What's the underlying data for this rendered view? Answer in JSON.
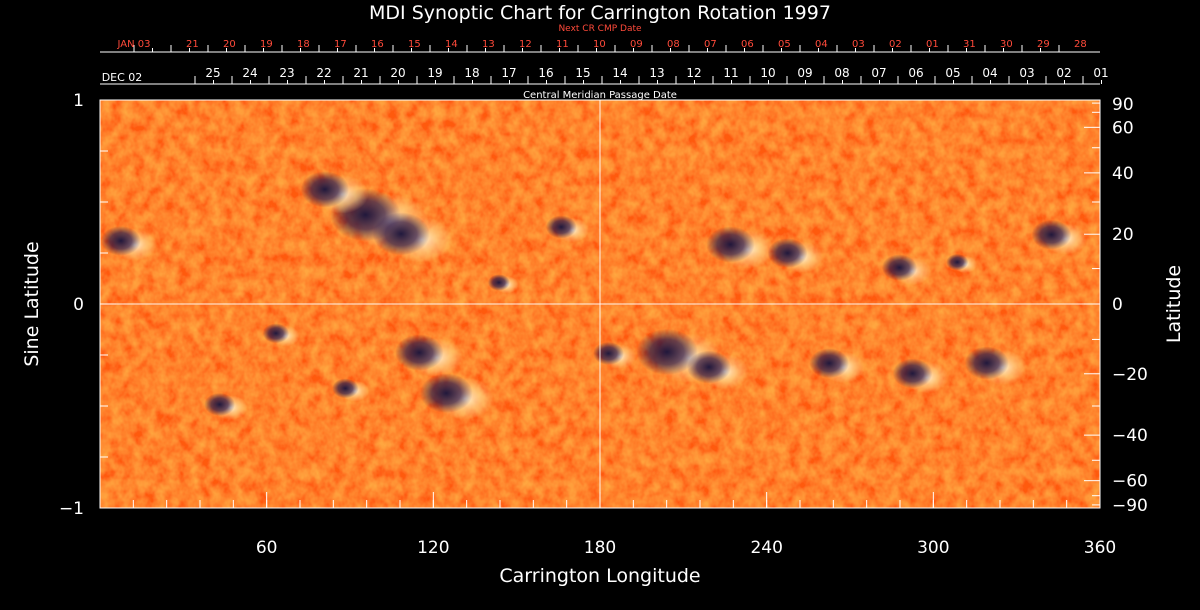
{
  "chart_data": {
    "type": "heatmap",
    "title": "MDI Synoptic Chart for Carrington Rotation 1997",
    "xlabel": "Carrington Longitude",
    "ylabel_left": "Sine Latitude",
    "ylabel_right": "Latitude",
    "xlim": [
      0,
      360
    ],
    "ylim": [
      -1,
      1
    ],
    "x_major_ticks": [
      60,
      120,
      180,
      240,
      300,
      360
    ],
    "x_minor_step": 12,
    "y_left_ticks": [
      {
        "value": 1,
        "label": "1"
      },
      {
        "value": 0,
        "label": "0"
      },
      {
        "value": -1,
        "label": "−1"
      }
    ],
    "y_left_minor_step": 0.25,
    "y_right_ticks": [
      {
        "deg": 90,
        "label": "90"
      },
      {
        "deg": 60,
        "label": "60"
      },
      {
        "deg": 40,
        "label": "40"
      },
      {
        "deg": 20,
        "label": "20"
      },
      {
        "deg": 0,
        "label": "0"
      },
      {
        "deg": -20,
        "label": "−20"
      },
      {
        "deg": -40,
        "label": "−40"
      },
      {
        "deg": -60,
        "label": "−60"
      },
      {
        "deg": -90,
        "label": "−90"
      }
    ],
    "y_right_minor_deg": [
      80,
      70,
      50,
      30,
      10,
      -10,
      -30,
      -50,
      -70,
      -80
    ],
    "center_lines": {
      "longitude": 180,
      "sine_latitude": 0
    },
    "colormap": {
      "background": "#ff5a10",
      "negative_polarity": "#1a1040",
      "positive_polarity": "#fff8e0"
    },
    "next_cr_axis_label": "Next CR CMP Date",
    "next_cr_dates": [
      "JAN 03",
      "21",
      "20",
      "19",
      "18",
      "17",
      "16",
      "15",
      "14",
      "13",
      "12",
      "11",
      "10",
      "09",
      "08",
      "07",
      "06",
      "05",
      "04",
      "03",
      "02",
      "01",
      "31",
      "30",
      "29",
      "28"
    ],
    "cmp_axis_label": "Central Meridian Passage Date",
    "cmp_dates": [
      "DEC 02",
      "25",
      "24",
      "23",
      "22",
      "21",
      "20",
      "19",
      "18",
      "17",
      "16",
      "15",
      "14",
      "13",
      "12",
      "11",
      "10",
      "09",
      "08",
      "07",
      "06",
      "05",
      "04",
      "03",
      "02",
      "01"
    ],
    "active_regions": [
      {
        "lon": 100,
        "sinlat": 0.42,
        "size": 1.6
      },
      {
        "lon": 112,
        "sinlat": 0.33,
        "size": 1.3
      },
      {
        "lon": 84,
        "sinlat": 0.55,
        "size": 1.1
      },
      {
        "lon": 168,
        "sinlat": 0.37,
        "size": 0.7
      },
      {
        "lon": 145,
        "sinlat": 0.1,
        "size": 0.5
      },
      {
        "lon": 230,
        "sinlat": 0.28,
        "size": 1.1
      },
      {
        "lon": 250,
        "sinlat": 0.24,
        "size": 0.9
      },
      {
        "lon": 290,
        "sinlat": 0.17,
        "size": 0.8
      },
      {
        "lon": 310,
        "sinlat": 0.2,
        "size": 0.5
      },
      {
        "lon": 345,
        "sinlat": 0.33,
        "size": 0.9
      },
      {
        "lon": 10,
        "sinlat": 0.3,
        "size": 0.9
      },
      {
        "lon": 65,
        "sinlat": -0.15,
        "size": 0.6
      },
      {
        "lon": 118,
        "sinlat": -0.25,
        "size": 1.1
      },
      {
        "lon": 128,
        "sinlat": -0.45,
        "size": 1.2
      },
      {
        "lon": 90,
        "sinlat": -0.42,
        "size": 0.6
      },
      {
        "lon": 185,
        "sinlat": -0.25,
        "size": 0.7
      },
      {
        "lon": 208,
        "sinlat": -0.25,
        "size": 1.4
      },
      {
        "lon": 222,
        "sinlat": -0.32,
        "size": 1.0
      },
      {
        "lon": 265,
        "sinlat": -0.3,
        "size": 0.9
      },
      {
        "lon": 295,
        "sinlat": -0.35,
        "size": 0.9
      },
      {
        "lon": 322,
        "sinlat": -0.3,
        "size": 1.0
      },
      {
        "lon": 45,
        "sinlat": -0.5,
        "size": 0.7
      }
    ]
  }
}
